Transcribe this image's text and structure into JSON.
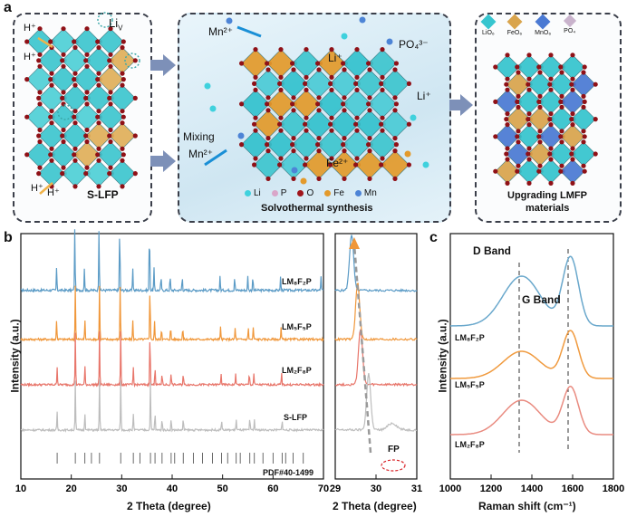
{
  "panel_a": {
    "letter": "a",
    "left": {
      "hplus1": "H⁺",
      "hplus2": "H⁺",
      "hplus3": "H⁺",
      "hplus4": "H⁺",
      "li_vac": "Li",
      "li_vac_sub": "V",
      "title": "S-LFP"
    },
    "middle": {
      "mn_top": "Mn²⁺",
      "mixing": "Mixing",
      "mn_side": "Mn²⁺",
      "po4": "PO₄³⁻",
      "li1": "Li⁺",
      "li2": "Li⁺",
      "fe": "Fe²⁺",
      "legend": [
        {
          "label": "Li",
          "color": "#3fd1dd"
        },
        {
          "label": "P",
          "color": "#d9a6c9"
        },
        {
          "label": "O",
          "color": "#a0151b"
        },
        {
          "label": "Fe",
          "color": "#e39a2b"
        },
        {
          "label": "Mn",
          "color": "#4d84d6"
        }
      ],
      "title": "Solvothermal synthesis"
    },
    "right": {
      "legend": [
        {
          "label": "LiO₆",
          "color": "#36c5cf"
        },
        {
          "label": "FeO₆",
          "color": "#d9a44c"
        },
        {
          "label": "MnO₆",
          "color": "#4a79d3"
        },
        {
          "label": "PO₄",
          "color": "#c9b3cc"
        }
      ],
      "title_line1": "Upgrading LMFP",
      "title_line2": "materials"
    }
  },
  "panel_b": {
    "letter": "b",
    "ylabel": "Intensity (a.u.)",
    "xlabel": "2 Theta (degree)",
    "xlabel_zoom": "2 Theta (degree)",
    "pdf_label": "PDF#40-1499",
    "fp_label": "FP",
    "xticks": [
      "10",
      "20",
      "30",
      "40",
      "50",
      "60",
      "70"
    ],
    "xticks_zoom": [
      "29",
      "30",
      "31"
    ],
    "curves": [
      {
        "name": "LM₈F₂P",
        "color": "#5b9bc6"
      },
      {
        "name": "LM₅F₅P",
        "color": "#f0973a"
      },
      {
        "name": "LM₂F₈P",
        "color": "#e8766b"
      },
      {
        "name": "S-LFP",
        "color": "#bdbdbd"
      }
    ]
  },
  "panel_c": {
    "letter": "c",
    "ylabel": "Intensity (a.u.)",
    "xlabel": "Raman shift (cm⁻¹)",
    "d_band": "D Band",
    "g_band": "G Band",
    "xticks": [
      "1000",
      "1200",
      "1400",
      "1600",
      "1800"
    ],
    "curves": [
      {
        "name": "LM₈F₂P",
        "color": "#6aa8cc"
      },
      {
        "name": "LM₅F₅P",
        "color": "#f09a3e"
      },
      {
        "name": "LM₂F₈P",
        "color": "#e98b80"
      }
    ]
  },
  "chart_data": [
    {
      "type": "line",
      "title": "",
      "xlabel": "2 Theta (degree)",
      "ylabel": "Intensity (a.u.)",
      "xlim": [
        10,
        70
      ],
      "series": [
        {
          "name": "LM₈F₂P",
          "peaks_2theta": [
            17.1,
            20.7,
            22.6,
            25.5,
            29.6,
            32.2,
            35.5,
            36.4,
            37.8,
            39.6,
            42.0,
            49.5,
            52.4,
            55.0,
            56.0,
            61.5,
            69.5
          ]
        },
        {
          "name": "LM₅F₅P",
          "peaks_2theta": [
            17.1,
            20.8,
            22.7,
            25.6,
            29.7,
            32.2,
            35.6,
            36.5,
            37.9,
            39.7,
            42.1,
            49.6,
            52.5,
            55.1,
            56.1,
            61.6
          ]
        },
        {
          "name": "LM₂F₈P",
          "peaks_2theta": [
            17.2,
            20.8,
            22.7,
            25.6,
            29.8,
            32.3,
            35.6,
            36.6,
            38.0,
            39.8,
            42.2,
            49.7,
            52.6,
            55.3,
            56.2,
            61.7
          ]
        },
        {
          "name": "S-LFP",
          "peaks_2theta": [
            17.2,
            20.8,
            22.7,
            25.6,
            29.8,
            32.3,
            35.7,
            36.6,
            38.0,
            39.8,
            42.2,
            49.8,
            52.7,
            55.4,
            56.3,
            61.8
          ]
        }
      ]
    },
    {
      "type": "line",
      "title": "",
      "xlabel": "2 Theta (degree)",
      "ylabel": "",
      "xlim": [
        29,
        31
      ],
      "series": [
        {
          "name": "LM₈F₂P",
          "peak": 29.4
        },
        {
          "name": "LM₅F₅P",
          "peak": 29.55
        },
        {
          "name": "LM₂F₈P",
          "peak": 29.62
        },
        {
          "name": "S-LFP",
          "peak": 29.82
        }
      ]
    },
    {
      "type": "line",
      "title": "",
      "xlabel": "Raman shift (cm⁻¹)",
      "ylabel": "Intensity (a.u.)",
      "xlim": [
        1000,
        1800
      ],
      "series": [
        {
          "name": "LM₈F₂P",
          "D_band": 1350,
          "G_band": 1590
        },
        {
          "name": "LM₅F₅P",
          "D_band": 1350,
          "G_band": 1590
        },
        {
          "name": "LM₂F₈P",
          "D_band": 1350,
          "G_band": 1590
        }
      ]
    }
  ]
}
